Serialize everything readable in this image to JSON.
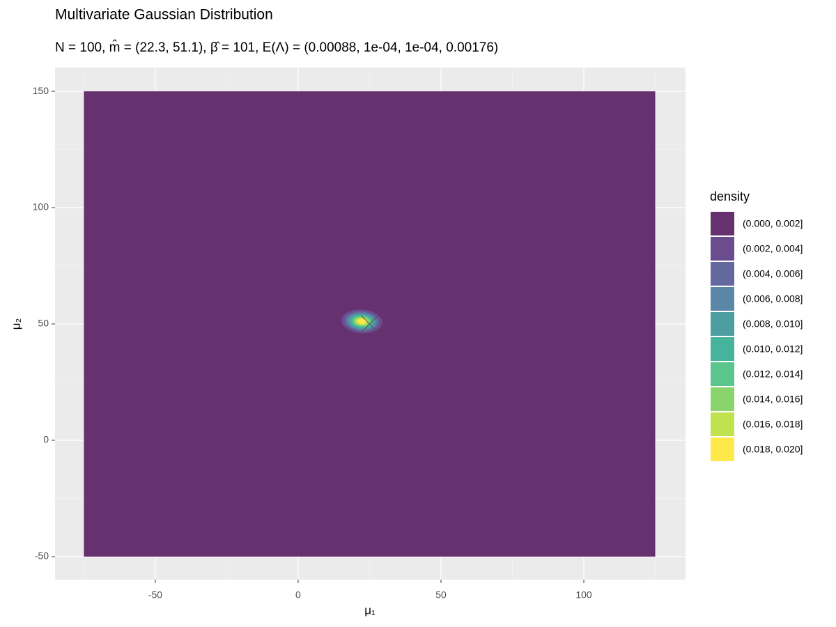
{
  "chart_data": {
    "type": "contour",
    "title": "Multivariate Gaussian Distribution",
    "subtitle": "N = 100, m̂ = (22.3, 51.1), β̂ = 101, E(Λ) = (0.00088, 1e-04, 1e-04, 0.00176)",
    "xlabel": "μ₁",
    "ylabel": "μ₂",
    "xlim": [
      -85.1,
      135.6
    ],
    "ylim": [
      -59.9,
      160.2
    ],
    "xticks": [
      -50,
      0,
      50,
      100
    ],
    "yticks": [
      -50,
      0,
      50,
      100,
      150
    ],
    "xminor": [
      -75,
      -25,
      25,
      75,
      125
    ],
    "yminor": [
      -25,
      25,
      75,
      125
    ],
    "grid": true,
    "grid_x": [
      -75,
      125
    ],
    "grid_y": [
      -50,
      150
    ],
    "mean": [
      22.3,
      51.1
    ],
    "beta": 101,
    "precision": [
      0.00088,
      0.0001,
      0.0001,
      0.00176
    ],
    "marker": {
      "x": 25,
      "y": 50
    },
    "legend": {
      "title": "density",
      "position": "right",
      "bins": [
        "(0.000, 0.002]",
        "(0.002, 0.004]",
        "(0.004, 0.006]",
        "(0.006, 0.008]",
        "(0.008, 0.010]",
        "(0.010, 0.012]",
        "(0.012, 0.014]",
        "(0.014, 0.016]",
        "(0.016, 0.018]",
        "(0.018, 0.020]"
      ],
      "levels": [
        0,
        0.002,
        0.004,
        0.006,
        0.008,
        0.01,
        0.012,
        0.014,
        0.016,
        0.018,
        0.02
      ],
      "colors": [
        "#65316e",
        "#6a4c8f",
        "#63699f",
        "#5a87a5",
        "#4d9ea0",
        "#46b39d",
        "#5ac58c",
        "#8ad46e",
        "#c0e24e",
        "#fde94a"
      ]
    }
  }
}
